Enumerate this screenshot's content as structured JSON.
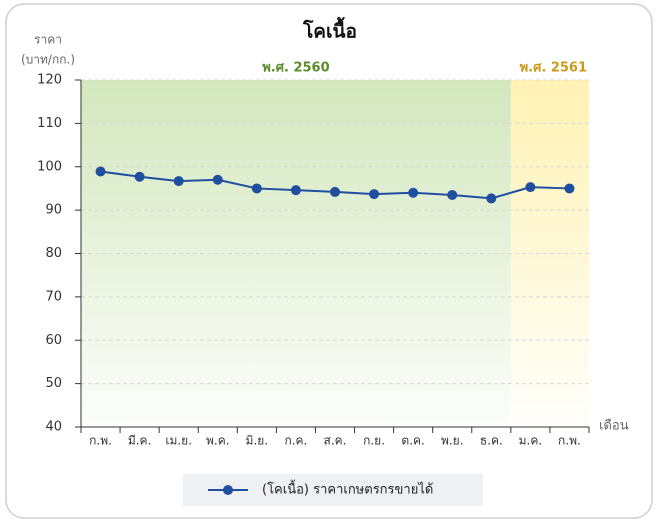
{
  "chart_data": {
    "type": "line",
    "title": "โคเนื้อ",
    "y_label": [
      "ราคา",
      "(บาท/กก.)"
    ],
    "x_label": "เดือน",
    "categories": [
      "ก.พ.",
      "มี.ค.",
      "เม.ย.",
      "พ.ค.",
      "มิ.ย.",
      "ก.ค.",
      "ส.ค.",
      "ก.ย.",
      "ต.ค.",
      "พ.ย.",
      "ธ.ค.",
      "ม.ค.",
      "ก.พ."
    ],
    "periods": [
      {
        "label": "พ.ศ. 2560",
        "count": 11,
        "color": "#d3e7bd",
        "text_color": "#5b8c2a"
      },
      {
        "label": "พ.ศ. 2561",
        "count": 2,
        "color": "#fff2b3",
        "text_color": "#c99a1c"
      }
    ],
    "series": [
      {
        "name": "(โคเนื้อ) ราคาเกษตรกรขายได้",
        "color": "#1f4f9e",
        "values": [
          98.9,
          97.7,
          96.7,
          97.0,
          95.0,
          94.6,
          94.2,
          93.7,
          94.0,
          93.5,
          92.7,
          95.3,
          95.0
        ]
      }
    ],
    "ylim": [
      40,
      120
    ],
    "yticks": [
      40,
      50,
      60,
      70,
      80,
      90,
      100,
      110,
      120
    ],
    "grid": true,
    "legend": "bottom"
  }
}
